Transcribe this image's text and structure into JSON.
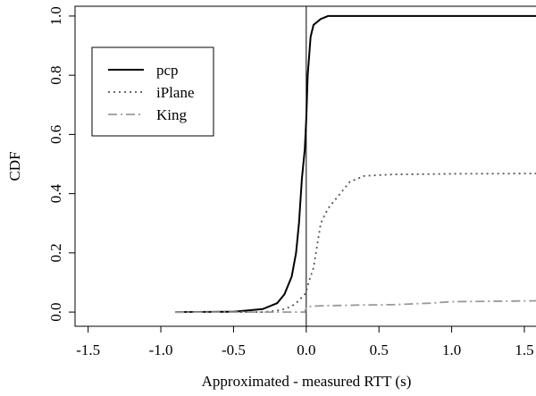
{
  "chart_data": {
    "type": "line",
    "xlabel": "Approximated - measured RTT (s)",
    "ylabel": "CDF",
    "x": [
      -0.9,
      -0.5,
      -0.3,
      -0.2,
      -0.15,
      -0.1,
      -0.07,
      -0.05,
      -0.03,
      -0.01,
      0,
      0.01,
      0.03,
      0.05,
      0.1,
      0.15,
      0.2,
      0.3,
      0.4,
      0.6,
      0.85,
      1.0,
      1.58
    ],
    "series": [
      {
        "name": "pcp",
        "color": "#000000",
        "linestyle": "solid",
        "values": [
          0,
          0.001,
          0.01,
          0.03,
          0.06,
          0.12,
          0.2,
          0.3,
          0.45,
          0.55,
          0.65,
          0.8,
          0.93,
          0.97,
          0.99,
          1,
          1,
          1,
          1,
          1,
          1,
          1,
          1
        ]
      },
      {
        "name": "iPlane",
        "color": "#555555",
        "linestyle": "dotted",
        "values": [
          0,
          0,
          0,
          0.005,
          0.01,
          0.02,
          0.03,
          0.04,
          0.05,
          0.06,
          0.07,
          0.09,
          0.12,
          0.15,
          0.3,
          0.35,
          0.38,
          0.44,
          0.46,
          0.465,
          0.466,
          0.467,
          0.468
        ]
      },
      {
        "name": "King",
        "color": "#999999",
        "linestyle": "dashdot",
        "values": [
          0,
          0,
          0,
          0,
          0,
          0,
          0,
          0,
          0,
          0,
          0.015,
          0.018,
          0.019,
          0.02,
          0.021,
          0.022,
          0.022,
          0.023,
          0.024,
          0.025,
          0.03,
          0.035,
          0.038
        ]
      }
    ],
    "xlim": [
      -1.59,
      1.58
    ],
    "ylim": [
      -0.048,
      1.033
    ],
    "xticks": [
      -1.5,
      {
        "value": -1,
        "label": "-1.0"
      },
      -0.5,
      {
        "value": 0,
        "label": "0.0"
      },
      0.5,
      {
        "value": 1,
        "label": "1.0"
      },
      1.5
    ],
    "yticks": [
      {
        "value": 0,
        "label": "0.0"
      },
      0.2,
      0.4,
      0.6,
      0.8,
      {
        "value": 1,
        "label": "1.0"
      }
    ],
    "vlines": [
      0
    ],
    "legend": "top-left",
    "grid": false
  }
}
